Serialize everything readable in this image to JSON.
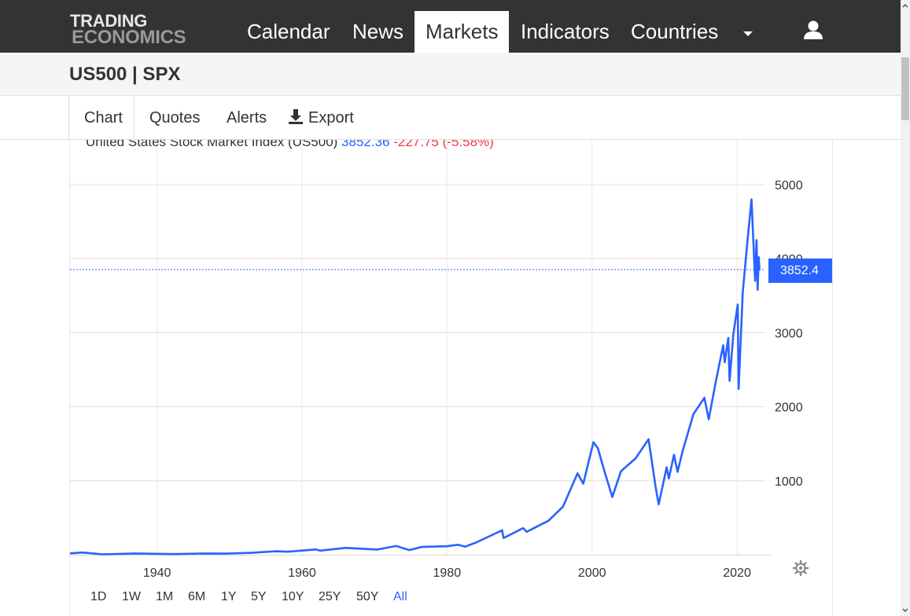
{
  "header": {
    "logo_line1": "TRADING",
    "logo_line2": "ECONOMICS",
    "nav": [
      "Calendar",
      "News",
      "Markets",
      "Indicators",
      "Countries"
    ],
    "active_nav": "Markets",
    "user_icon": "user-icon",
    "dropdown_icon": "caret-down-icon"
  },
  "page": {
    "title": "US500 | SPX"
  },
  "tabs": {
    "chart": "Chart",
    "quotes": "Quotes",
    "alerts": "Alerts",
    "export": "Export",
    "export_icon": "download-icon"
  },
  "legend": {
    "name": "United States Stock Market Index (US500)",
    "value": "3852.36",
    "change": "-227.75",
    "change_pct": "(-5.58%)"
  },
  "price_badge": "3852.4",
  "range_buttons": [
    "1D",
    "1W",
    "1M",
    "6M",
    "1Y",
    "5Y",
    "10Y",
    "25Y",
    "50Y",
    "All"
  ],
  "selected_range": "All",
  "colors": {
    "accent": "#2962ff",
    "negative": "#f23645",
    "nav_bg": "#333333"
  },
  "chart_data": {
    "type": "line",
    "title": "",
    "series": [
      {
        "name": "United States Stock Market Index (US500)",
        "points": [
          [
            1928.0,
            18
          ],
          [
            1929.7,
            30
          ],
          [
            1932.5,
            5
          ],
          [
            1937.0,
            17
          ],
          [
            1942.3,
            8
          ],
          [
            1946.5,
            17
          ],
          [
            1949.5,
            15
          ],
          [
            1953.0,
            25
          ],
          [
            1956.5,
            47
          ],
          [
            1958.0,
            40
          ],
          [
            1961.9,
            71
          ],
          [
            1962.5,
            55
          ],
          [
            1966.0,
            92
          ],
          [
            1970.4,
            70
          ],
          [
            1973.0,
            118
          ],
          [
            1974.8,
            63
          ],
          [
            1976.5,
            105
          ],
          [
            1980.0,
            115
          ],
          [
            1981.5,
            135
          ],
          [
            1982.5,
            108
          ],
          [
            1984.0,
            165
          ],
          [
            1987.6,
            330
          ],
          [
            1987.8,
            225
          ],
          [
            1990.5,
            360
          ],
          [
            1991.0,
            310
          ],
          [
            1994.0,
            460
          ],
          [
            1996.0,
            650
          ],
          [
            1998.0,
            1100
          ],
          [
            1998.8,
            960
          ],
          [
            2000.2,
            1520
          ],
          [
            2000.8,
            1440
          ],
          [
            2001.8,
            1100
          ],
          [
            2002.8,
            780
          ],
          [
            2004.0,
            1130
          ],
          [
            2006.0,
            1300
          ],
          [
            2007.8,
            1560
          ],
          [
            2008.8,
            900
          ],
          [
            2009.2,
            680
          ],
          [
            2010.3,
            1180
          ],
          [
            2010.6,
            1030
          ],
          [
            2011.3,
            1350
          ],
          [
            2011.8,
            1120
          ],
          [
            2012.5,
            1400
          ],
          [
            2014.0,
            1900
          ],
          [
            2015.5,
            2120
          ],
          [
            2016.1,
            1830
          ],
          [
            2017.0,
            2300
          ],
          [
            2018.1,
            2830
          ],
          [
            2018.3,
            2600
          ],
          [
            2018.8,
            2930
          ],
          [
            2018.98,
            2350
          ],
          [
            2019.5,
            2980
          ],
          [
            2020.1,
            3380
          ],
          [
            2020.22,
            2240
          ],
          [
            2020.8,
            3550
          ],
          [
            2021.5,
            4300
          ],
          [
            2022.0,
            4800
          ],
          [
            2022.5,
            3700
          ],
          [
            2022.7,
            4250
          ],
          [
            2022.85,
            3580
          ],
          [
            2023.0,
            4020
          ],
          [
            2023.1,
            3852.36
          ]
        ]
      }
    ],
    "x_ticks": [
      1940,
      1960,
      1980,
      2000,
      2020
    ],
    "y_ticks": [
      1000,
      2000,
      3000,
      4000,
      5000
    ],
    "xlim": [
      1928,
      2024
    ],
    "ylim": [
      0,
      5000
    ],
    "last_value": 3852.36,
    "grid": true,
    "y_axis_side": "right"
  }
}
